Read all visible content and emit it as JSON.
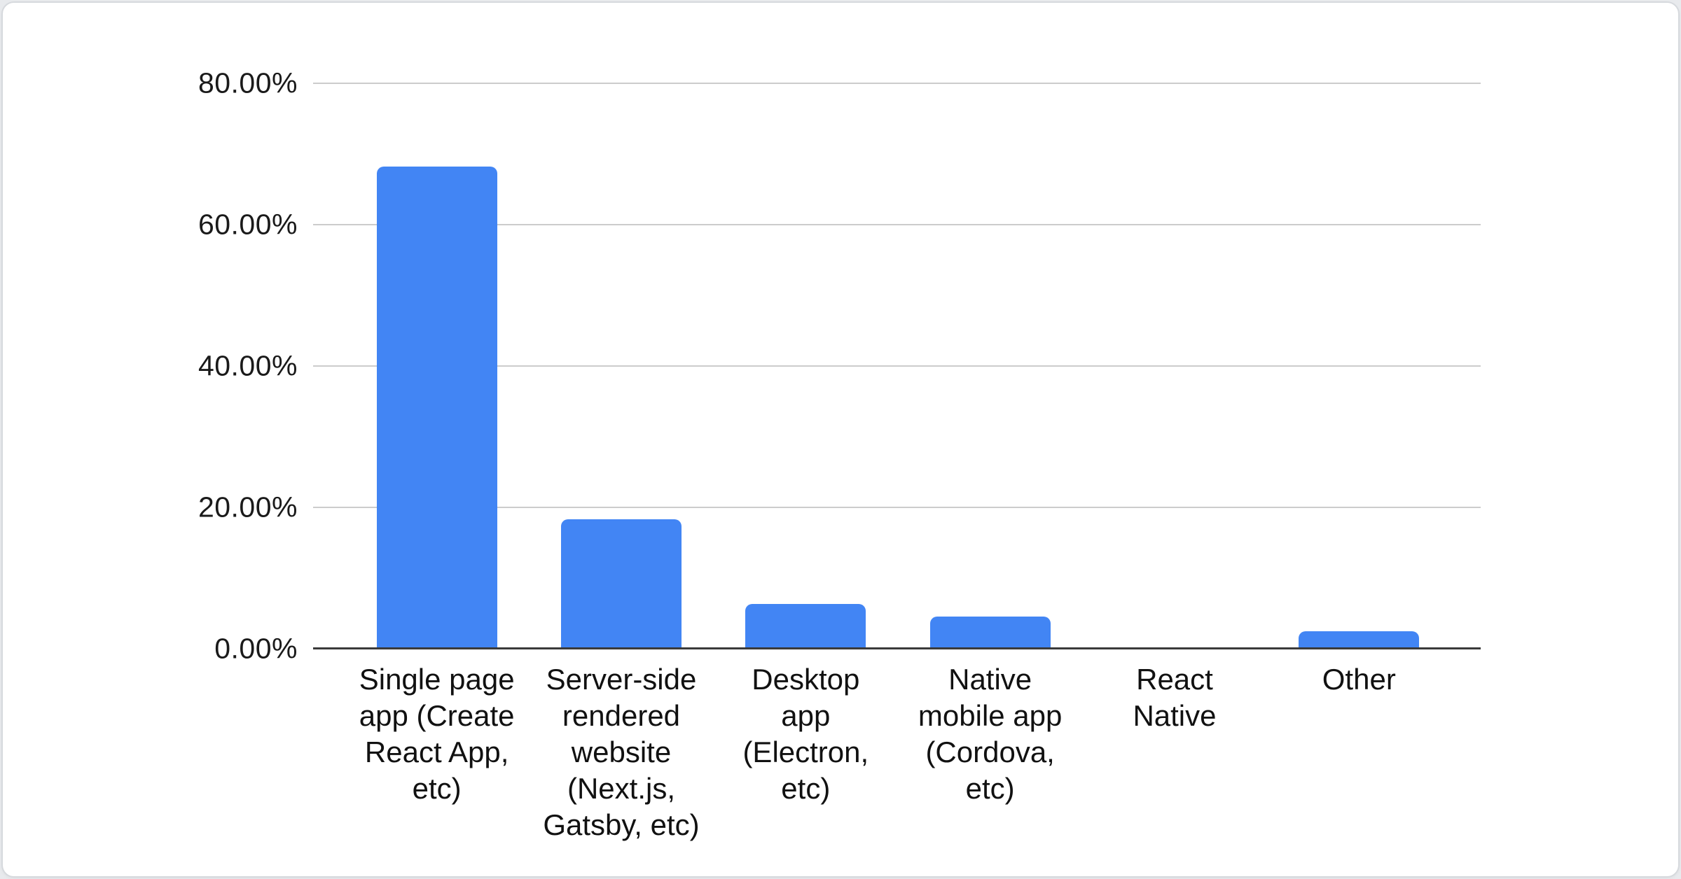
{
  "page": {
    "background_color": "#e8eaed",
    "card_background": "#ffffff",
    "card_border_color": "#d6d9dd"
  },
  "chart_data": {
    "type": "bar",
    "title": "",
    "xlabel": "",
    "ylabel": "",
    "legend_position": "none",
    "grid": true,
    "gridline_color": "#cccccc",
    "axis_line_color": "#3a3a3a",
    "bar_color": "#4285f4",
    "label_color": "#111111",
    "ylim": [
      0,
      80
    ],
    "unit": "%",
    "categories": [
      "Single page app (Create React App, etc)",
      "Server-side rendered website (Next.js, Gatsby, etc)",
      "Desktop app (Electron, etc)",
      "Native mobile app (Cordova, etc)",
      "React Native",
      "Other"
    ],
    "values": [
      68.2,
      18.3,
      6.3,
      4.6,
      0,
      2.5
    ],
    "yticks": [
      {
        "value": 80,
        "label": "80.00%"
      },
      {
        "value": 60,
        "label": "60.00%"
      },
      {
        "value": 40,
        "label": "40.00%"
      },
      {
        "value": 20,
        "label": "20.00%"
      },
      {
        "value": 0,
        "label": "0.00%"
      }
    ]
  }
}
